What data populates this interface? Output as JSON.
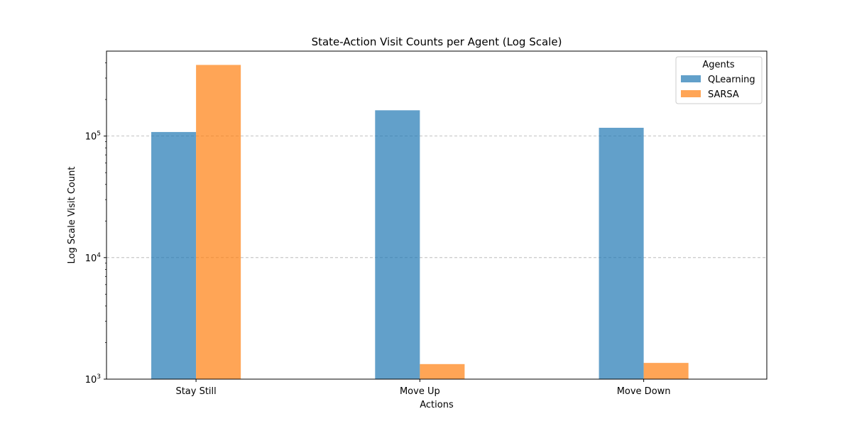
{
  "chart_data": {
    "type": "bar",
    "title": "State-Action Visit Counts per Agent (Log Scale)",
    "xlabel": "Actions",
    "ylabel": "Log Scale Visit Count",
    "categories": [
      "Stay Still",
      "Move Up",
      "Move Down"
    ],
    "series": [
      {
        "name": "QLearning",
        "color": "#1f77b4",
        "values": [
          108000,
          163000,
          117000
        ]
      },
      {
        "name": "SARSA",
        "color": "#ff7f0e",
        "values": [
          385000,
          1330,
          1360
        ]
      }
    ],
    "yscale": "log",
    "ylim": [
      1000,
      500000
    ],
    "yticks": [
      {
        "value": 1000,
        "label": "10",
        "exp": "3"
      },
      {
        "value": 10000,
        "label": "10",
        "exp": "4"
      },
      {
        "value": 100000,
        "label": "10",
        "exp": "5"
      }
    ],
    "grid": "y-dashed",
    "legend": {
      "title": "Agents",
      "position": "top-right"
    }
  }
}
